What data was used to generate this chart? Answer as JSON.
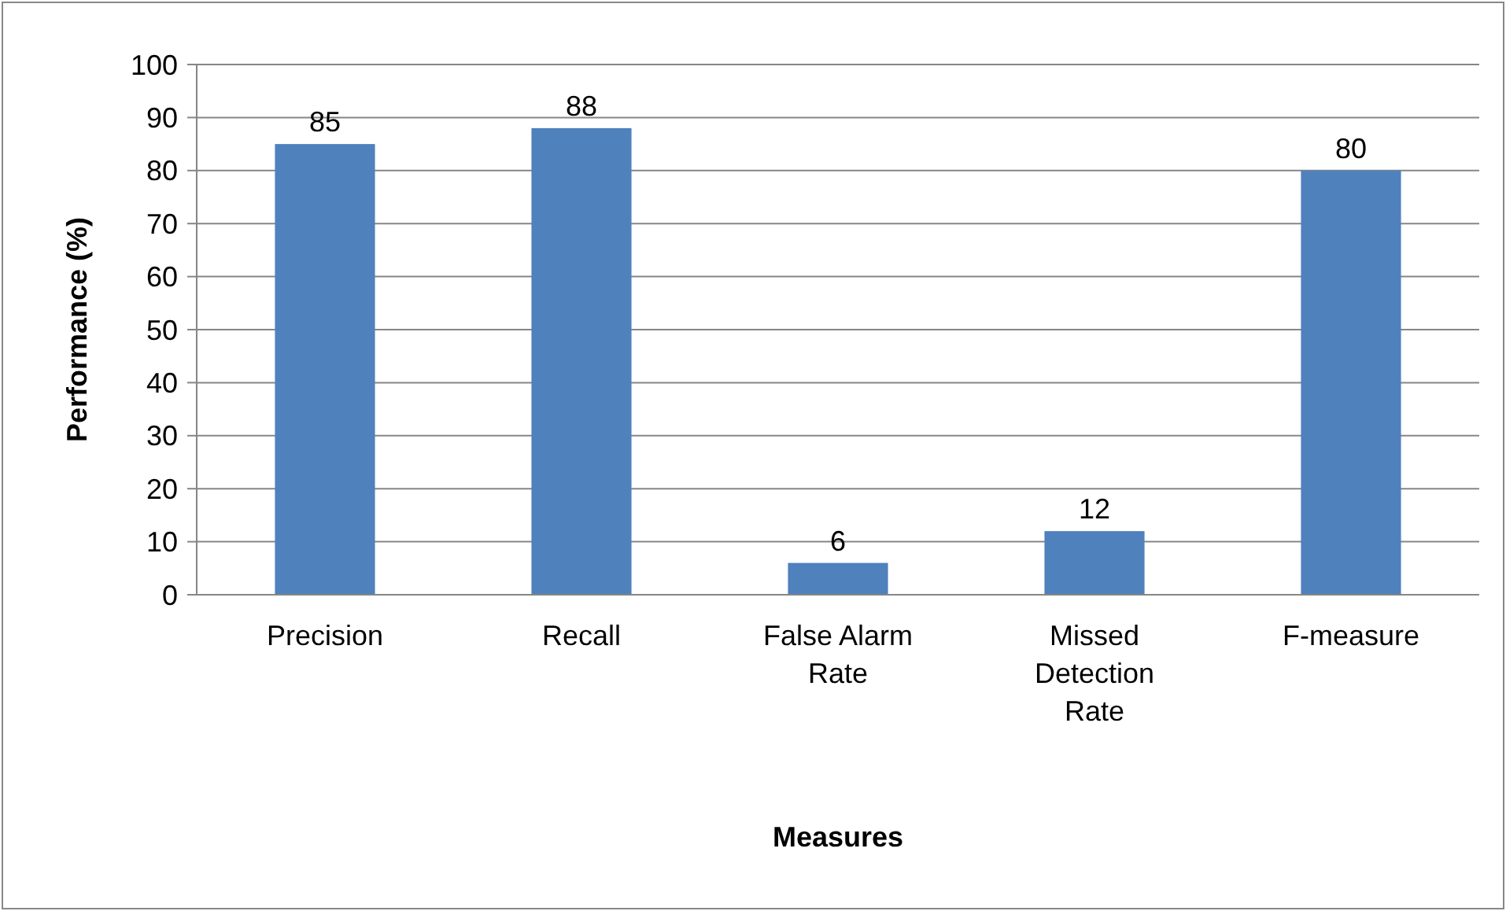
{
  "chart_data": {
    "type": "bar",
    "xlabel": "Measures",
    "ylabel": "Performance (%)",
    "categories": [
      "Precision",
      "Recall",
      "False Alarm Rate",
      "Missed Detection Rate",
      "F-measure"
    ],
    "values": [
      85,
      88,
      6,
      12,
      80
    ],
    "color": "#4f81bd",
    "data_labels": true,
    "ylim": [
      0,
      100
    ],
    "yticks": [
      0,
      10,
      20,
      30,
      40,
      50,
      60,
      70,
      80,
      90,
      100
    ],
    "grid": "y"
  }
}
